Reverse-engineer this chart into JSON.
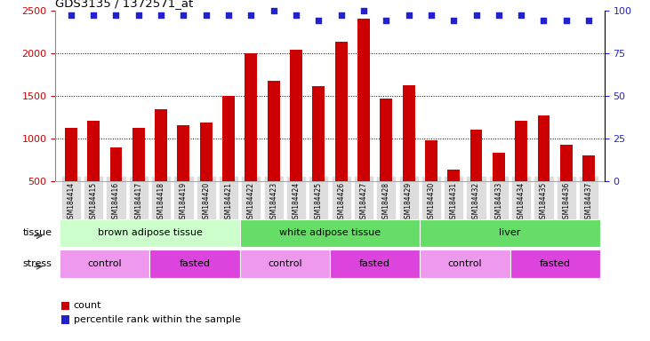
{
  "title": "GDS3135 / 1372571_at",
  "samples": [
    "GSM184414",
    "GSM184415",
    "GSM184416",
    "GSM184417",
    "GSM184418",
    "GSM184419",
    "GSM184420",
    "GSM184421",
    "GSM184422",
    "GSM184423",
    "GSM184424",
    "GSM184425",
    "GSM184426",
    "GSM184427",
    "GSM184428",
    "GSM184429",
    "GSM184430",
    "GSM184431",
    "GSM184432",
    "GSM184433",
    "GSM184434",
    "GSM184435",
    "GSM184436",
    "GSM184437"
  ],
  "counts": [
    1120,
    1200,
    895,
    1120,
    1340,
    1150,
    1185,
    1500,
    2000,
    1670,
    2040,
    1610,
    2130,
    2400,
    1460,
    1620,
    970,
    630,
    1100,
    830,
    1200,
    1270,
    920,
    800
  ],
  "percentile_ranks": [
    97,
    97,
    97,
    97,
    97,
    97,
    97,
    97,
    97,
    100,
    97,
    94,
    97,
    100,
    94,
    97,
    97,
    94,
    97,
    97,
    97,
    94,
    94,
    94
  ],
  "bar_color": "#cc0000",
  "dot_color": "#2222cc",
  "ylim_left": [
    500,
    2500
  ],
  "ylim_right": [
    0,
    100
  ],
  "yticks_left": [
    500,
    1000,
    1500,
    2000,
    2500
  ],
  "yticks_right": [
    0,
    25,
    50,
    75,
    100
  ],
  "grid_values": [
    1000,
    1500,
    2000
  ],
  "tissue_groups": [
    {
      "label": "brown adipose tissue",
      "start": 0,
      "end": 7,
      "color": "#ccffcc"
    },
    {
      "label": "white adipose tissue",
      "start": 8,
      "end": 15,
      "color": "#66dd66"
    },
    {
      "label": "liver",
      "start": 16,
      "end": 23,
      "color": "#66dd66"
    }
  ],
  "stress_groups": [
    {
      "label": "control",
      "start": 0,
      "end": 3,
      "color": "#ee99ee"
    },
    {
      "label": "fasted",
      "start": 4,
      "end": 7,
      "color": "#dd44dd"
    },
    {
      "label": "control",
      "start": 8,
      "end": 11,
      "color": "#ee99ee"
    },
    {
      "label": "fasted",
      "start": 12,
      "end": 15,
      "color": "#dd44dd"
    },
    {
      "label": "control",
      "start": 16,
      "end": 19,
      "color": "#ee99ee"
    },
    {
      "label": "fasted",
      "start": 20,
      "end": 23,
      "color": "#dd44dd"
    }
  ],
  "tissue_row_label": "tissue",
  "stress_row_label": "stress",
  "legend_count_label": "count",
  "legend_percentile_label": "percentile rank within the sample",
  "bg_color": "#ffffff",
  "axis_label_color_left": "#cc0000",
  "axis_label_color_right": "#2222cc",
  "bar_width": 0.55,
  "xticklabel_fontsize": 5.5,
  "yticklabel_fontsize": 8
}
